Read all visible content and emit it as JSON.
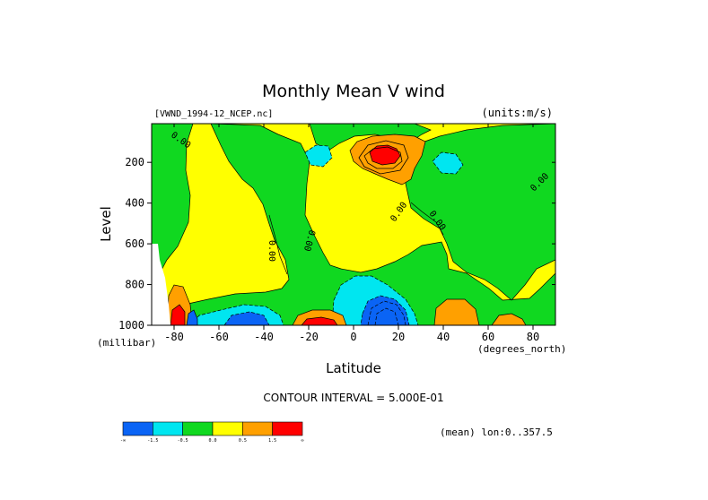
{
  "chart_data": {
    "type": "contour",
    "title": "Monthly Mean V wind",
    "dataset_label": "[VWND_1994-12_NCEP.nc]",
    "units_label": "(units:m/s)",
    "xlabel": "Latitude",
    "x_units": "(degrees_north)",
    "ylabel": "Level",
    "y_units": "(millibar)",
    "xlim": [
      -90,
      90
    ],
    "ylim": [
      1000,
      10
    ],
    "y_inverted": true,
    "x_ticks": [
      -80,
      -60,
      -40,
      -20,
      0,
      20,
      40,
      60,
      80
    ],
    "y_ticks": [
      200,
      400,
      600,
      800,
      1000
    ],
    "contour_interval_text": "CONTOUR INTERVAL = 5.000E-01",
    "mean_note": "(mean) lon:0..357.5",
    "contour_labels": [
      "0.00",
      "0.00",
      "0.00",
      "0.00",
      "0.00",
      "0.00"
    ],
    "colorbar": {
      "colors": [
        "#0a64f5",
        "#00e6f0",
        "#10d820",
        "#ffff00",
        "#ffa000",
        "#ff0000"
      ],
      "tick_labels": [
        "-∞",
        "-1.5",
        "-0.5",
        "0.0",
        "0.5",
        "1.5",
        "∞"
      ]
    },
    "regions": [
      {
        "level": "(0, 0.5]",
        "color": "#ffff00",
        "note": "background / broad positive"
      },
      {
        "level": "(-0.5, 0]",
        "color": "#10d820",
        "note": "near-zero negative bands"
      },
      {
        "level": "(0.5, 1.5]",
        "color": "#ffa000",
        "note": "upper-level maximum near 10N, 150-250 mb"
      },
      {
        "level": "> 1.5",
        "color": "#ff0000",
        "note": "core near 10N, 170 mb"
      },
      {
        "level": "(-1.5, -0.5]",
        "color": "#00e6f0",
        "note": "weak negative cells"
      },
      {
        "level": "< -1.5",
        "color": "#0a64f5",
        "note": "strong negative near 10N, 950 mb and 60S"
      }
    ]
  }
}
